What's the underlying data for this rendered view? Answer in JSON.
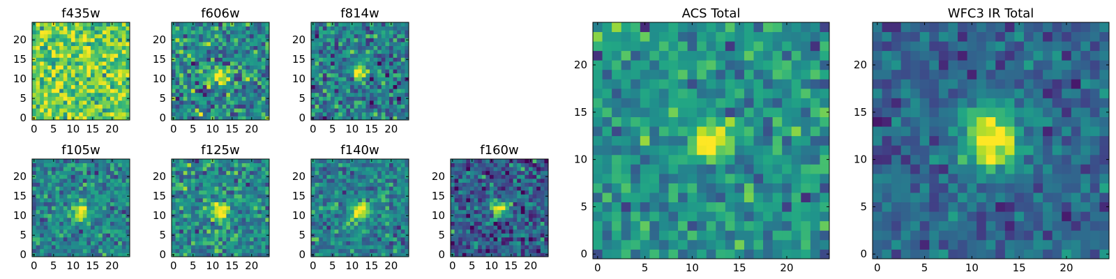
{
  "chart_data": [
    {
      "type": "heatmap",
      "title": "f435w",
      "colormap": "viridis",
      "grid_size": [
        25,
        25
      ],
      "xlim": [
        0,
        25
      ],
      "ylim": [
        0,
        25
      ],
      "xticks": [
        "0",
        "5",
        "10",
        "15",
        "20"
      ],
      "yticks": [
        "0",
        "5",
        "10",
        "15",
        "20"
      ],
      "source_center": null,
      "description_level": "noise-dominated"
    },
    {
      "type": "heatmap",
      "title": "f606w",
      "colormap": "viridis",
      "grid_size": [
        25,
        25
      ],
      "xlim": [
        0,
        25
      ],
      "ylim": [
        0,
        25
      ],
      "xticks": [
        "0",
        "5",
        "10",
        "15",
        "20"
      ],
      "yticks": [
        "0",
        "5",
        "10",
        "15",
        "20"
      ],
      "source_center": [
        12,
        11
      ]
    },
    {
      "type": "heatmap",
      "title": "f814w",
      "colormap": "viridis",
      "grid_size": [
        25,
        25
      ],
      "xlim": [
        0,
        25
      ],
      "ylim": [
        0,
        25
      ],
      "xticks": [
        "0",
        "5",
        "10",
        "15",
        "20"
      ],
      "yticks": [
        "0",
        "5",
        "10",
        "15",
        "20"
      ],
      "source_center": [
        12,
        12
      ]
    },
    {
      "type": "heatmap",
      "title": "f105w",
      "colormap": "viridis",
      "grid_size": [
        25,
        25
      ],
      "xlim": [
        0,
        25
      ],
      "ylim": [
        0,
        25
      ],
      "xticks": [
        "0",
        "5",
        "10",
        "15",
        "20"
      ],
      "yticks": [
        "0",
        "5",
        "10",
        "15",
        "20"
      ],
      "source_center": [
        12,
        11
      ]
    },
    {
      "type": "heatmap",
      "title": "f125w",
      "colormap": "viridis",
      "grid_size": [
        25,
        25
      ],
      "xlim": [
        0,
        25
      ],
      "ylim": [
        0,
        25
      ],
      "xticks": [
        "0",
        "5",
        "10",
        "15",
        "20"
      ],
      "yticks": [
        "0",
        "5",
        "10",
        "15",
        "20"
      ],
      "source_center": [
        12,
        11
      ]
    },
    {
      "type": "heatmap",
      "title": "f140w",
      "colormap": "viridis",
      "grid_size": [
        25,
        25
      ],
      "xlim": [
        0,
        25
      ],
      "ylim": [
        0,
        25
      ],
      "xticks": [
        "0",
        "5",
        "10",
        "15",
        "20"
      ],
      "yticks": [
        "0",
        "5",
        "10",
        "15",
        "20"
      ],
      "source_center": [
        12,
        11
      ]
    },
    {
      "type": "heatmap",
      "title": "f160w",
      "colormap": "viridis",
      "grid_size": [
        25,
        25
      ],
      "xlim": [
        0,
        25
      ],
      "ylim": [
        0,
        25
      ],
      "xticks": [
        "0",
        "5",
        "10",
        "15",
        "20"
      ],
      "yticks": [
        "0",
        "5",
        "10",
        "15",
        "20"
      ],
      "source_center": [
        12,
        12
      ]
    },
    {
      "type": "heatmap",
      "title": "ACS Total",
      "colormap": "viridis",
      "grid_size": [
        25,
        25
      ],
      "xlim": [
        0,
        25
      ],
      "ylim": [
        0,
        25
      ],
      "xticks": [
        "0",
        "5",
        "10",
        "15",
        "20"
      ],
      "yticks": [
        "0",
        "5",
        "10",
        "15",
        "20"
      ],
      "source_center": [
        12,
        12
      ]
    },
    {
      "type": "heatmap",
      "title": "WFC3 IR Total",
      "colormap": "viridis",
      "grid_size": [
        25,
        25
      ],
      "xlim": [
        0,
        25
      ],
      "ylim": [
        0,
        25
      ],
      "xticks": [
        "0",
        "5",
        "10",
        "15",
        "20"
      ],
      "yticks": [
        "0",
        "5",
        "10",
        "15",
        "20"
      ],
      "source_center": [
        12,
        12
      ]
    }
  ]
}
